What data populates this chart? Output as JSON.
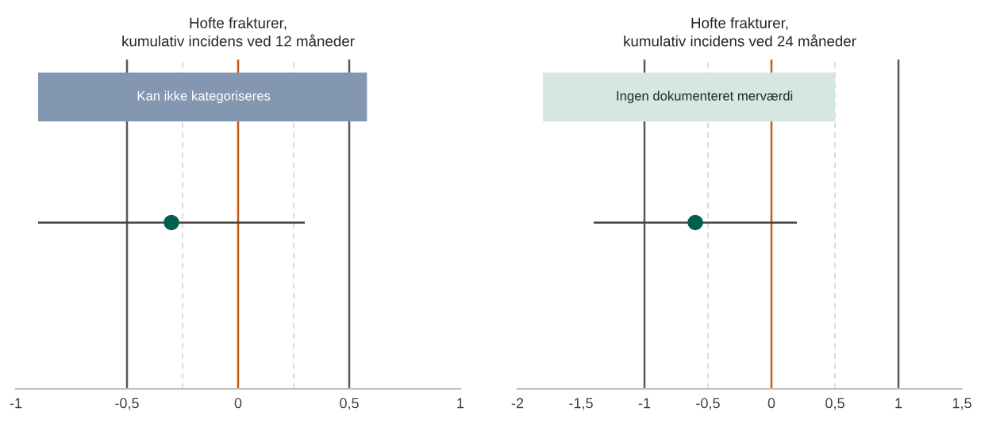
{
  "chart_data": [
    {
      "type": "scatter",
      "title": "Hofte frakturer,\nkumulativ incidens ved 12 måneder",
      "orientation": "horizontal",
      "categories": [
        null
      ],
      "series": [
        {
          "color": "#00604f",
          "values": [
            -0.3
          ],
          "errors": [
            [
              -0.9,
              0.3
            ]
          ]
        }
      ],
      "xlim": [
        -1,
        1
      ],
      "xticks": [
        -1,
        {
          "value": -0.5,
          "label": "-0,5"
        },
        0,
        {
          "value": 0.5,
          "label": "0,5"
        },
        1
      ],
      "ref_lines": [
        {
          "axis": "x",
          "value": -0.5,
          "color": "#595959",
          "line_style": "solid"
        },
        {
          "axis": "x",
          "value": 0.5,
          "color": "#595959",
          "line_style": "solid"
        },
        {
          "axis": "x",
          "value": -0.25,
          "color": "#d9d9d9",
          "line_style": "dashed"
        },
        {
          "axis": "x",
          "value": 0.25,
          "color": "#d9d9d9",
          "line_style": "dashed"
        },
        {
          "axis": "x",
          "value": 0,
          "color": "#c55a11",
          "line_style": "solid"
        }
      ],
      "bands": [
        {
          "axis": "x",
          "from": -0.9,
          "to": 0.58,
          "label": "Kan ikke kategoriseres",
          "color": "#8497b0"
        }
      ],
      "tick_labels": "x",
      "grid": false,
      "marker": "circle"
    },
    {
      "type": "scatter",
      "title": "Hofte frakturer,\nkumulativ incidens ved 24 måneder",
      "orientation": "horizontal",
      "categories": [
        null
      ],
      "series": [
        {
          "color": "#00604f",
          "values": [
            -0.6
          ],
          "errors": [
            [
              -1.4,
              0.2
            ]
          ]
        }
      ],
      "xlim": [
        -2,
        1.5
      ],
      "xticks": [
        -2,
        {
          "value": -1.5,
          "label": "-1,5"
        },
        -1,
        {
          "value": -0.5,
          "label": "-0,5"
        },
        0,
        {
          "value": 0.5,
          "label": "0,5"
        },
        1,
        {
          "value": 1.5,
          "label": "1,5"
        }
      ],
      "ref_lines": [
        {
          "axis": "x",
          "value": -1,
          "color": "#595959",
          "line_style": "solid"
        },
        {
          "axis": "x",
          "value": 1,
          "color": "#595959",
          "line_style": "solid"
        },
        {
          "axis": "x",
          "value": -0.5,
          "color": "#d9d9d9",
          "line_style": "dashed"
        },
        {
          "axis": "x",
          "value": 0.5,
          "color": "#d9d9d9",
          "line_style": "dashed"
        },
        {
          "axis": "x",
          "value": 0,
          "color": "#c55a11",
          "line_style": "solid"
        }
      ],
      "bands": [
        {
          "axis": "x",
          "from": -1.8,
          "to": 0.5,
          "label": "Ingen dokumenteret merværdi",
          "color": "#d6e6e2"
        }
      ],
      "tick_labels": "x",
      "grid": false,
      "marker": "circle"
    }
  ]
}
